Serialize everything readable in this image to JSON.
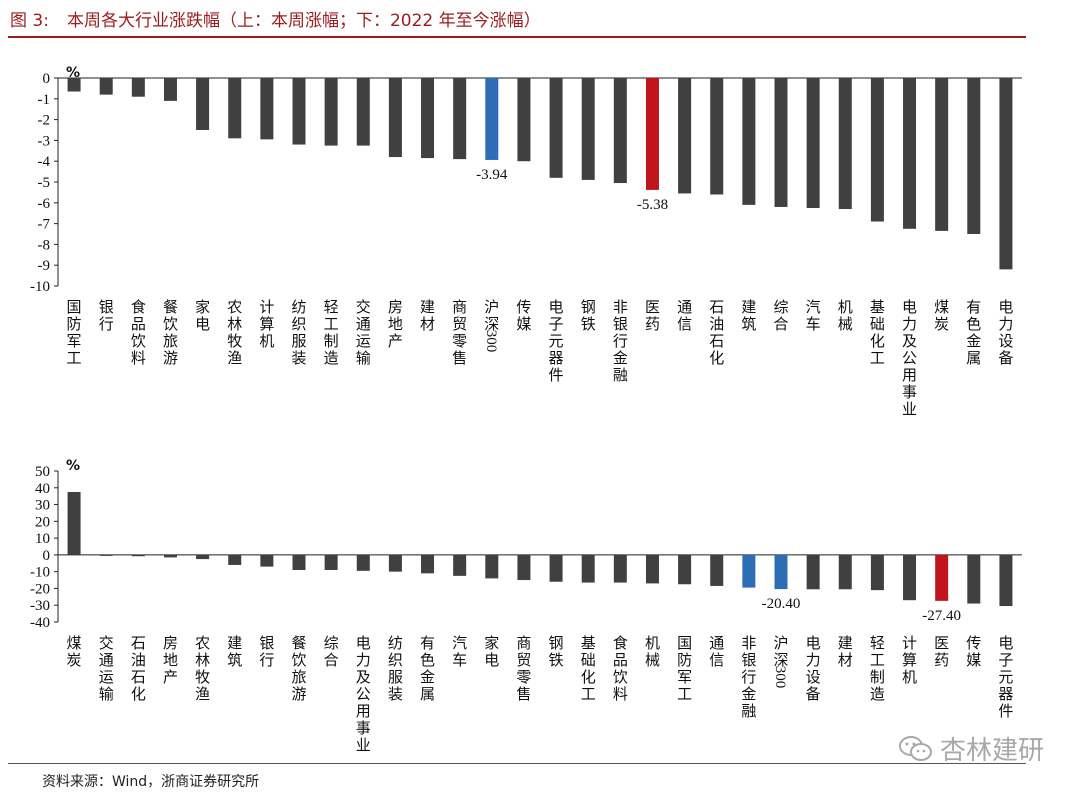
{
  "figure": {
    "label": "图 3:",
    "title": "本周各大行业涨跌幅（上：本周涨幅；下：2022 年至今涨幅）",
    "source": "资料来源：Wind，浙商证券研究所",
    "watermark": "杏林建研"
  },
  "colors": {
    "default": "#404040",
    "index": "#2e6db5",
    "highlight": "#c0151c"
  },
  "chart_data": [
    {
      "type": "bar",
      "unit": "%",
      "ylim": [
        -10,
        0
      ],
      "yticks": [
        0,
        -1,
        -2,
        -3,
        -4,
        -5,
        -6,
        -7,
        -8,
        -9,
        -10
      ],
      "categories": [
        "国防军工",
        "银行",
        "食品饮料",
        "餐饮旅游",
        "家电",
        "农林牧渔",
        "计算机",
        "纺织服装",
        "轻工制造",
        "交通运输",
        "房地产",
        "建材",
        "商贸零售",
        "沪深300",
        "传媒",
        "电子元器件",
        "钢铁",
        "非银行金融",
        "医药",
        "通信",
        "石油石化",
        "建筑",
        "综合",
        "汽车",
        "机械",
        "基础化工",
        "电力及公用事业",
        "煤炭",
        "有色金属",
        "电力设备"
      ],
      "values": [
        -0.65,
        -0.8,
        -0.9,
        -1.1,
        -2.5,
        -2.9,
        -2.95,
        -3.2,
        -3.25,
        -3.25,
        -3.8,
        -3.85,
        -3.9,
        -3.94,
        -4.0,
        -4.8,
        -4.9,
        -5.05,
        -5.38,
        -5.55,
        -5.6,
        -6.1,
        -6.2,
        -6.25,
        -6.3,
        -6.9,
        -7.25,
        -7.35,
        -7.5,
        -9.2
      ],
      "highlights": [
        {
          "category": "沪深300",
          "color": "index",
          "label": "-3.94"
        },
        {
          "category": "医药",
          "color": "highlight",
          "label": "-5.38"
        }
      ]
    },
    {
      "type": "bar",
      "unit": "%",
      "ylim": [
        -40,
        50
      ],
      "yticks": [
        50,
        40,
        30,
        20,
        10,
        0,
        -10,
        -20,
        -30,
        -40
      ],
      "categories": [
        "煤炭",
        "交通运输",
        "石油石化",
        "房地产",
        "农林牧渔",
        "建筑",
        "银行",
        "餐饮旅游",
        "综合",
        "电力及公用事业",
        "纺织服装",
        "有色金属",
        "汽车",
        "家电",
        "商贸零售",
        "钢铁",
        "基础化工",
        "食品饮料",
        "机械",
        "国防军工",
        "通信",
        "非银行金融",
        "沪深300",
        "电力设备",
        "建材",
        "轻工制造",
        "计算机",
        "医药",
        "传媒",
        "电子元器件"
      ],
      "values": [
        37.5,
        -0.5,
        -0.8,
        -1.5,
        -2.5,
        -6,
        -7,
        -9,
        -9,
        -9.5,
        -10,
        -11,
        -12.5,
        -14,
        -15,
        -16,
        -16.5,
        -16.5,
        -17,
        -17.5,
        -18.5,
        -19.5,
        -20.4,
        -20.5,
        -20.5,
        -21,
        -27,
        -27.4,
        -29,
        -30.5
      ],
      "highlights": [
        {
          "category": "非银行金融",
          "color": "index"
        },
        {
          "category": "沪深300",
          "color": "index",
          "label": "-20.40"
        },
        {
          "category": "医药",
          "color": "highlight",
          "label": "-27.40"
        }
      ]
    }
  ]
}
